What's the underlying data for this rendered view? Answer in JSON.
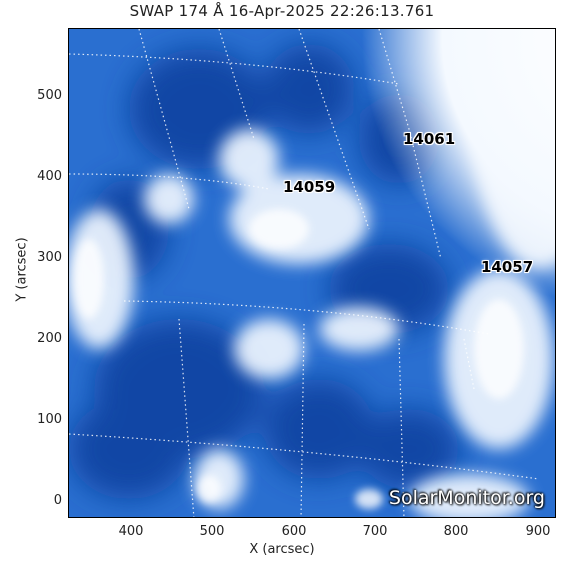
{
  "title": "SWAP 174 Å 16-Apr-2025 22:26:13.761",
  "xlabel": "X (arcsec)",
  "ylabel": "Y (arcsec)",
  "x_ticks": [
    "400",
    "500",
    "600",
    "700",
    "800",
    "900"
  ],
  "y_ticks": [
    "500",
    "400",
    "300",
    "200",
    "100",
    "0"
  ],
  "active_regions": [
    "14061",
    "14059",
    "14057"
  ],
  "watermark": "SolarMonitor.org",
  "colors": {
    "background": "#1f63c9",
    "dark_region": "#0c3f9f",
    "bright_loop": "#e8f1fc",
    "grid": "#ffffff"
  }
}
